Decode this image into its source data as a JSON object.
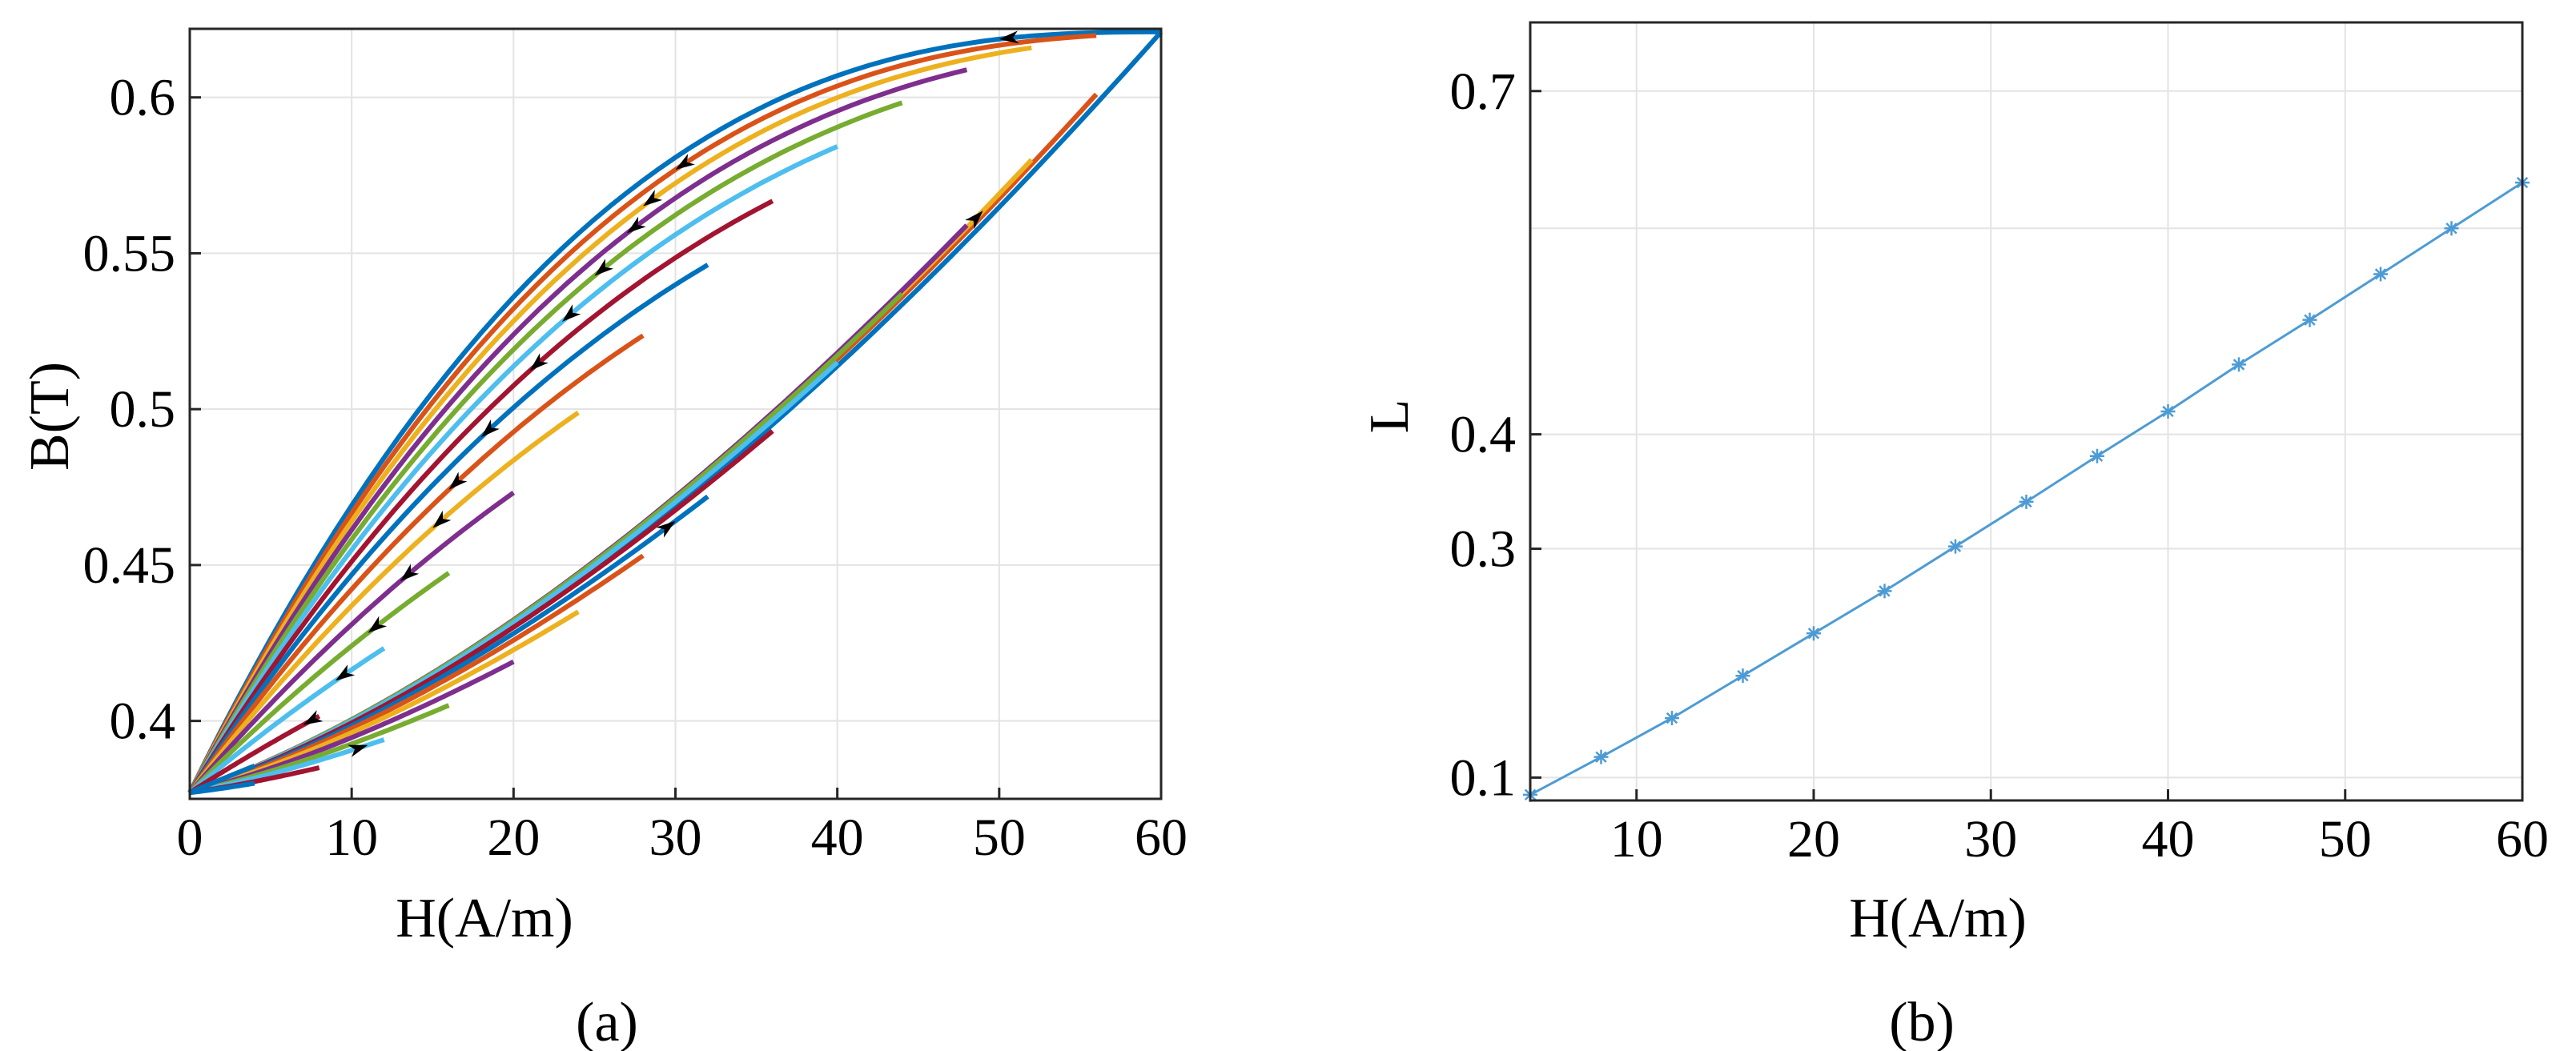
{
  "figure": {
    "panel_a_label": "(a)",
    "panel_b_label": "(b)"
  },
  "chart_data": [
    {
      "type": "line",
      "panel": "a",
      "xlabel": "H(A/m)",
      "ylabel": "B(T)",
      "xlim": [
        0,
        60
      ],
      "ylim": [
        0.375,
        0.622
      ],
      "xticks": [
        0,
        10,
        20,
        30,
        40,
        50,
        60
      ],
      "xtick_labels": [
        "0",
        "10",
        "20",
        "30",
        "40",
        "50",
        "60"
      ],
      "yticks": [
        0.4,
        0.45,
        0.5,
        0.55,
        0.6
      ],
      "ytick_labels": [
        "0.4",
        "0.45",
        "0.5",
        "0.55",
        "0.6"
      ],
      "grid": true,
      "colors": [
        "#0072BD",
        "#D95319",
        "#EDB120",
        "#7E2F8E",
        "#77AC30",
        "#4DBEEE",
        "#A2142F"
      ],
      "loop_origin": [
        0,
        0.377
      ],
      "loop_tips": [
        {
          "H": 60,
          "B": 0.621,
          "color": "#0072BD"
        },
        {
          "H": 56,
          "B": 0.601,
          "color": "#D95319"
        },
        {
          "H": 52,
          "B": 0.58,
          "color": "#EDB120"
        },
        {
          "H": 48,
          "B": 0.559,
          "color": "#7E2F8E"
        },
        {
          "H": 44,
          "B": 0.537,
          "color": "#77AC30"
        },
        {
          "H": 40,
          "B": 0.515,
          "color": "#4DBEEE"
        },
        {
          "H": 36,
          "B": 0.493,
          "color": "#A2142F"
        },
        {
          "H": 32,
          "B": 0.472,
          "color": "#0072BD"
        },
        {
          "H": 28,
          "B": 0.453,
          "color": "#D95319"
        },
        {
          "H": 24,
          "B": 0.435,
          "color": "#EDB120"
        },
        {
          "H": 20,
          "B": 0.419,
          "color": "#7E2F8E"
        },
        {
          "H": 16,
          "B": 0.405,
          "color": "#77AC30"
        },
        {
          "H": 12,
          "B": 0.394,
          "color": "#4DBEEE"
        },
        {
          "H": 8,
          "B": 0.385,
          "color": "#A2142F"
        },
        {
          "H": 4,
          "B": 0.38,
          "color": "#0072BD"
        }
      ],
      "descending_arrows_H": [
        50,
        30,
        28,
        27,
        25,
        23,
        21,
        18,
        16,
        15,
        13,
        11,
        9,
        7,
        5
      ],
      "ascending_arrows_H": [
        49,
        30,
        11
      ]
    },
    {
      "type": "line",
      "panel": "b",
      "xlabel": "H(A/m)",
      "ylabel": "L",
      "xlim": [
        4,
        60
      ],
      "ylim": [
        0.08,
        0.76
      ],
      "xticks": [
        10,
        20,
        30,
        40,
        50,
        60
      ],
      "xtick_labels": [
        "10",
        "20",
        "30",
        "40",
        "50",
        "60"
      ],
      "yticks": [
        0.1,
        0.3,
        0.4,
        0.7
      ],
      "ytick_labels": [
        "0.1",
        "0.3",
        "0.4",
        "0.7"
      ],
      "ygrid_values": [
        0.1,
        0.3,
        0.4,
        0.58,
        0.7
      ],
      "grid": true,
      "series": [
        {
          "color": "#4D9BD4",
          "marker": "asterisk",
          "x": [
            4,
            8,
            12,
            16,
            20,
            24,
            28,
            32,
            36,
            40,
            44,
            48,
            52,
            56,
            60
          ],
          "y": [
            0.085,
            0.118,
            0.152,
            0.189,
            0.226,
            0.263,
            0.302,
            0.341,
            0.381,
            0.42,
            0.461,
            0.5,
            0.54,
            0.58,
            0.62
          ]
        }
      ]
    }
  ]
}
